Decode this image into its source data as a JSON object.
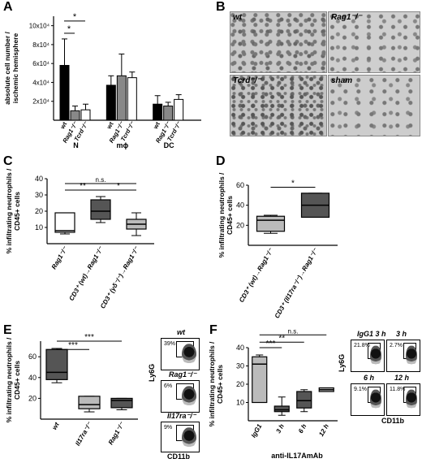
{
  "letters": {
    "A": "A",
    "B": "B",
    "C": "C",
    "D": "D",
    "E": "E",
    "F": "F"
  },
  "panelA": {
    "ylabel_lines": [
      "absolute cell number /",
      "ischemic hemisphere"
    ],
    "ticks": [
      "2x10⁴",
      "4x10⁴",
      "6x10⁴",
      "8x10⁴",
      "10x10⁴"
    ],
    "group_labels": [
      "N",
      "mϕ",
      "DC"
    ],
    "bar_labels": [
      "wt",
      "Rag1⁻/⁻",
      "Tcrd⁻/⁻"
    ],
    "sig": [
      "*",
      "*"
    ],
    "fills": [
      "#000000",
      "#888888",
      "#ffffff"
    ]
  },
  "panelB": {
    "labels": [
      "wt",
      "Rag1⁻/⁻",
      "Tcrd⁻/⁻",
      "sham"
    ]
  },
  "panelC": {
    "ylabel_lines": [
      "% infiltrating neutrophils /",
      "CD45+ cells"
    ],
    "ticks": [
      "10",
      "20",
      "30",
      "40"
    ],
    "xlabels": [
      "Rag1⁻/⁻",
      "CD3⁺ (wt)→Rag1⁻/⁻",
      "CD3⁺ (γδ⁻/⁻)→Rag1⁻/⁻"
    ],
    "sig": [
      "n.s.",
      "**",
      "*"
    ]
  },
  "panelD": {
    "ylabel_lines": [
      "% infiltrating neutrophils /",
      "CD45+ cells"
    ],
    "ticks": [
      "20",
      "40",
      "60"
    ],
    "xlabels": [
      "CD3⁺ (wt)→Rag1⁻/⁻",
      "CD3⁺ (Il17ra⁻/⁻)→Rag1⁻/⁻"
    ],
    "sig": [
      "*"
    ]
  },
  "panelE": {
    "ylabel_lines": [
      "% infiltrating neutrophils /",
      "CD45+ cells"
    ],
    "ticks": [
      "20",
      "40",
      "60"
    ],
    "xlabels": [
      "wt",
      "Il17ra⁻/⁻",
      "Rag1⁻/⁻"
    ],
    "sig": [
      "***",
      "***"
    ],
    "flow": {
      "titles": [
        "wt",
        "Rag1⁻/⁻",
        "Il17ra⁻/⁻"
      ],
      "pcts": [
        "39%",
        "6%",
        "9%"
      ],
      "yaxis": "Ly6G",
      "xaxis": "CD11b"
    }
  },
  "panelF": {
    "ylabel_lines": [
      "% infiltrating neutrophils /",
      "CD45+ cells"
    ],
    "ticks": [
      "10",
      "20",
      "30",
      "40"
    ],
    "xlabels": [
      "IgG1",
      "3 h",
      "6 h",
      "12 h"
    ],
    "xtitle": "anti-IL17AmAb",
    "sig": [
      "n.s.",
      "**",
      "***"
    ],
    "flow": {
      "titles": [
        "IgG1 3 h",
        "3 h",
        "6 h",
        "12 h"
      ],
      "pcts": [
        "21.8%",
        "2.7%",
        "9.1%",
        "11.8%"
      ],
      "yaxis": "Ly6G",
      "xaxis": "CD11b"
    }
  },
  "chart_data": [
    {
      "type": "bar",
      "panel": "A",
      "ylabel": "absolute cell number / ischemic hemisphere",
      "ylim": [
        0,
        110000
      ],
      "categories": [
        "N",
        "mϕ",
        "DC"
      ],
      "series": [
        {
          "name": "wt",
          "values": [
            58000,
            37000,
            17000
          ],
          "errors": [
            28000,
            10000,
            9000
          ]
        },
        {
          "name": "Rag1⁻/⁻",
          "values": [
            10000,
            47000,
            15000
          ],
          "errors": [
            5000,
            23000,
            4000
          ]
        },
        {
          "name": "Tcrd⁻/⁻",
          "values": [
            11000,
            45000,
            22000
          ],
          "errors": [
            6000,
            6000,
            5000
          ]
        }
      ]
    },
    {
      "type": "box",
      "panel": "C",
      "ylim": [
        0,
        40
      ],
      "categories": [
        "Rag1⁻/⁻",
        "CD3⁺ (wt)→Rag1⁻/⁻",
        "CD3⁺ (γδ⁻/⁻)→Rag1⁻/⁻"
      ],
      "boxes": [
        {
          "min": 6,
          "q1": 7,
          "median": 8,
          "q3": 19,
          "max": 19,
          "color": "#ffffff"
        },
        {
          "min": 13,
          "q1": 15,
          "median": 20,
          "q3": 27,
          "max": 29,
          "color": "#555555"
        },
        {
          "min": 5,
          "q1": 9,
          "median": 12,
          "q3": 15,
          "max": 19,
          "color": "#bbbbbb"
        }
      ]
    },
    {
      "type": "box",
      "panel": "D",
      "ylim": [
        0,
        60
      ],
      "categories": [
        "CD3⁺ (wt)→Rag1⁻/⁻",
        "CD3⁺ (Il17ra⁻/⁻)→Rag1⁻/⁻"
      ],
      "boxes": [
        {
          "min": 12,
          "q1": 14,
          "median": 25,
          "q3": 29,
          "max": 30,
          "color": "#bbbbbb"
        },
        {
          "min": 28,
          "q1": 28,
          "median": 40,
          "q3": 52,
          "max": 52,
          "color": "#555555"
        }
      ]
    },
    {
      "type": "box",
      "panel": "E",
      "ylim": [
        0,
        75
      ],
      "categories": [
        "wt",
        "Il17ra⁻/⁻",
        "Rag1⁻/⁻"
      ],
      "boxes": [
        {
          "min": 35,
          "q1": 38,
          "median": 45,
          "q3": 67,
          "max": 68,
          "color": "#555555"
        },
        {
          "min": 7,
          "q1": 10,
          "median": 14,
          "q3": 22,
          "max": 22,
          "color": "#bbbbbb"
        },
        {
          "min": 9,
          "q1": 11,
          "median": 18,
          "q3": 20,
          "max": 20,
          "color": "#555555"
        }
      ]
    },
    {
      "type": "box",
      "panel": "F",
      "ylim": [
        0,
        40
      ],
      "categories": [
        "IgG1",
        "3 h",
        "6 h",
        "12 h"
      ],
      "boxes": [
        {
          "min": 10,
          "q1": 10,
          "median": 31,
          "q3": 35,
          "max": 36,
          "color": "#bbbbbb"
        },
        {
          "min": 3,
          "q1": 5,
          "median": 6,
          "q3": 8,
          "max": 13,
          "color": "#555555"
        },
        {
          "min": 5,
          "q1": 7,
          "median": 11,
          "q3": 16,
          "max": 17,
          "color": "#555555"
        },
        {
          "min": 16,
          "q1": 16,
          "median": 17,
          "q3": 18,
          "max": 18,
          "color": "#bbbbbb"
        }
      ]
    }
  ]
}
